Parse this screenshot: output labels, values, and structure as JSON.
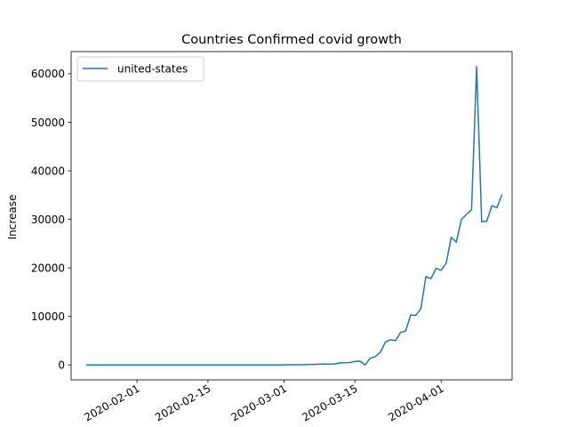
{
  "chart_data": {
    "type": "line",
    "title": "Countries Confirmed covid growth",
    "xlabel": "",
    "ylabel": "Increase",
    "x_type": "date",
    "x_ticks": [
      "2020-02-01",
      "2020-02-15",
      "2020-03-01",
      "2020-03-15",
      "2020-04-01"
    ],
    "y_ticks": [
      0,
      10000,
      20000,
      30000,
      40000,
      50000,
      60000
    ],
    "xlim": [
      "2020-01-19",
      "2020-04-15"
    ],
    "ylim": [
      -3077,
      64569
    ],
    "grid": false,
    "legend_position": "top-left",
    "x": [
      "2020-01-22",
      "2020-01-23",
      "2020-01-24",
      "2020-01-25",
      "2020-01-26",
      "2020-01-27",
      "2020-01-28",
      "2020-01-29",
      "2020-01-30",
      "2020-01-31",
      "2020-02-01",
      "2020-02-02",
      "2020-02-03",
      "2020-02-04",
      "2020-02-05",
      "2020-02-06",
      "2020-02-07",
      "2020-02-08",
      "2020-02-09",
      "2020-02-10",
      "2020-02-11",
      "2020-02-12",
      "2020-02-13",
      "2020-02-14",
      "2020-02-15",
      "2020-02-16",
      "2020-02-17",
      "2020-02-18",
      "2020-02-19",
      "2020-02-20",
      "2020-02-21",
      "2020-02-22",
      "2020-02-23",
      "2020-02-24",
      "2020-02-25",
      "2020-02-26",
      "2020-02-27",
      "2020-02-28",
      "2020-02-29",
      "2020-03-01",
      "2020-03-02",
      "2020-03-03",
      "2020-03-04",
      "2020-03-05",
      "2020-03-06",
      "2020-03-07",
      "2020-03-08",
      "2020-03-09",
      "2020-03-10",
      "2020-03-11",
      "2020-03-12",
      "2020-03-13",
      "2020-03-14",
      "2020-03-15",
      "2020-03-16",
      "2020-03-17",
      "2020-03-18",
      "2020-03-19",
      "2020-03-20",
      "2020-03-21",
      "2020-03-22",
      "2020-03-23",
      "2020-03-24",
      "2020-03-25",
      "2020-03-26",
      "2020-03-27",
      "2020-03-28",
      "2020-03-29",
      "2020-03-30",
      "2020-03-31",
      "2020-04-01",
      "2020-04-02",
      "2020-04-03",
      "2020-04-04",
      "2020-04-05",
      "2020-04-06",
      "2020-04-07",
      "2020-04-08",
      "2020-04-09",
      "2020-04-10",
      "2020-04-11",
      "2020-04-12",
      "2020-04-13"
    ],
    "series": [
      {
        "name": "united-states",
        "color": "#1f77b4",
        "values": [
          0,
          0,
          0,
          0,
          0,
          0,
          0,
          0,
          0,
          0,
          0,
          0,
          0,
          0,
          0,
          0,
          0,
          0,
          0,
          0,
          0,
          0,
          0,
          0,
          0,
          0,
          0,
          0,
          0,
          0,
          0,
          0,
          0,
          0,
          0,
          0,
          0,
          0,
          0,
          20,
          30,
          40,
          50,
          60,
          100,
          100,
          150,
          200,
          150,
          200,
          400,
          450,
          500,
          700,
          800,
          0,
          1400,
          1700,
          2600,
          4700,
          5200,
          5000,
          6700,
          7000,
          10300,
          10200,
          11600,
          18200,
          17800,
          19900,
          19500,
          21000,
          26300,
          25300,
          30000,
          31000,
          32000,
          61500,
          29500,
          29600,
          32800,
          32400,
          35100
        ]
      }
    ]
  }
}
